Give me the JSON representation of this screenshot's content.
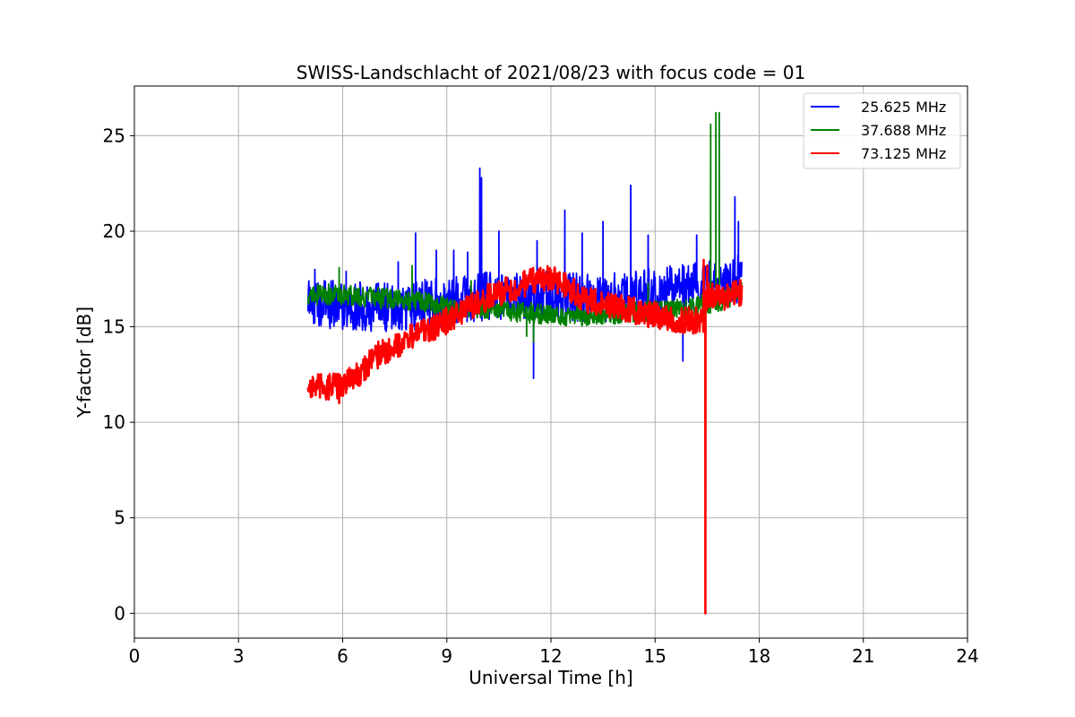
{
  "chart_data": {
    "type": "line",
    "title": "SWISS-Landschlacht of 2021/08/23 with focus code = 01",
    "xlabel": "Universal Time [h]",
    "ylabel": "Y-factor [dB]",
    "xlim": [
      0,
      24
    ],
    "ylim": [
      -1.3,
      27.6
    ],
    "xticks": [
      0,
      3,
      6,
      9,
      12,
      15,
      18,
      21,
      24
    ],
    "yticks": [
      0,
      5,
      10,
      15,
      20,
      25
    ],
    "grid": true,
    "legend_position": "top-right",
    "series": [
      {
        "name": "25.625 MHz",
        "color": "#0000ff",
        "baseline": {
          "x": [
            5.0,
            6.0,
            7.0,
            8.0,
            9.0,
            10.0,
            11.0,
            12.0,
            13.0,
            14.0,
            15.0,
            16.0,
            17.0,
            17.5
          ],
          "y": [
            16.3,
            16.1,
            16.0,
            16.1,
            16.3,
            16.6,
            16.7,
            16.6,
            16.5,
            16.6,
            16.8,
            17.0,
            17.4,
            17.6
          ]
        },
        "noise_band": 1.3,
        "spikes": [
          {
            "x": 5.2,
            "y": 18.0
          },
          {
            "x": 6.1,
            "y": 17.9
          },
          {
            "x": 7.6,
            "y": 18.4
          },
          {
            "x": 8.1,
            "y": 19.9
          },
          {
            "x": 8.7,
            "y": 19.0
          },
          {
            "x": 9.2,
            "y": 19.0
          },
          {
            "x": 9.6,
            "y": 18.9
          },
          {
            "x": 9.95,
            "y": 23.3
          },
          {
            "x": 10.0,
            "y": 22.8
          },
          {
            "x": 10.5,
            "y": 20.0
          },
          {
            "x": 11.5,
            "y": 12.3
          },
          {
            "x": 11.6,
            "y": 19.5
          },
          {
            "x": 12.4,
            "y": 21.1
          },
          {
            "x": 12.9,
            "y": 19.9
          },
          {
            "x": 13.5,
            "y": 20.5
          },
          {
            "x": 14.3,
            "y": 22.4
          },
          {
            "x": 14.8,
            "y": 19.8
          },
          {
            "x": 15.8,
            "y": 13.2
          },
          {
            "x": 16.2,
            "y": 19.8
          },
          {
            "x": 17.3,
            "y": 21.8
          },
          {
            "x": 17.4,
            "y": 20.5
          }
        ]
      },
      {
        "name": "37.688 MHz",
        "color": "#008000",
        "baseline": {
          "x": [
            5.0,
            6.0,
            7.0,
            8.0,
            9.0,
            10.0,
            11.0,
            12.0,
            13.0,
            14.0,
            15.0,
            16.0,
            17.0,
            17.5
          ],
          "y": [
            16.7,
            16.7,
            16.5,
            16.4,
            16.1,
            16.0,
            15.8,
            15.6,
            15.6,
            15.7,
            15.8,
            16.0,
            16.4,
            16.9
          ]
        },
        "noise_band": 0.55,
        "spikes": [
          {
            "x": 5.9,
            "y": 18.1
          },
          {
            "x": 8.0,
            "y": 18.2
          },
          {
            "x": 9.7,
            "y": 17.4
          },
          {
            "x": 11.3,
            "y": 14.5
          },
          {
            "x": 11.5,
            "y": 14.2
          },
          {
            "x": 14.8,
            "y": 17.3
          },
          {
            "x": 16.6,
            "y": 25.6
          },
          {
            "x": 16.75,
            "y": 26.2
          },
          {
            "x": 16.85,
            "y": 26.2
          },
          {
            "x": 16.45,
            "y": 0.1
          }
        ]
      },
      {
        "name": "73.125 MHz",
        "color": "#ff0000",
        "baseline": {
          "x": [
            5.0,
            5.5,
            6.0,
            6.5,
            7.0,
            8.0,
            9.0,
            10.0,
            11.0,
            11.5,
            12.0,
            12.5,
            13.0,
            14.0,
            15.0,
            15.5,
            16.0,
            16.4,
            16.5,
            17.0,
            17.5
          ],
          "y": [
            11.9,
            11.8,
            12.0,
            12.6,
            13.5,
            14.5,
            15.3,
            16.4,
            17.1,
            17.4,
            17.6,
            17.1,
            16.4,
            16.0,
            15.6,
            15.4,
            15.3,
            15.4,
            16.6,
            16.5,
            16.8
          ]
        },
        "noise_band": 0.7,
        "spikes": [
          {
            "x": 5.6,
            "y": 11.2
          },
          {
            "x": 5.9,
            "y": 11.0
          },
          {
            "x": 16.4,
            "y": 18.5
          },
          {
            "x": 16.45,
            "y": 0.0
          },
          {
            "x": 16.5,
            "y": 18.2
          }
        ]
      }
    ]
  }
}
